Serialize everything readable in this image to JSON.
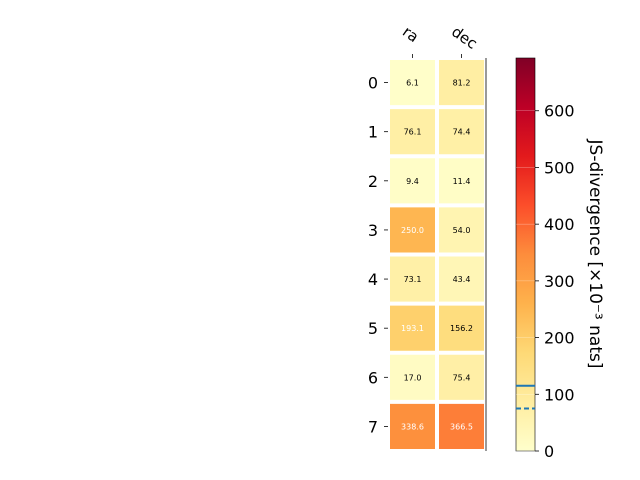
{
  "chart_data": {
    "type": "heatmap",
    "columns": [
      "ra",
      "dec"
    ],
    "rows": [
      "0",
      "1",
      "2",
      "3",
      "4",
      "5",
      "6",
      "7"
    ],
    "values": [
      [
        6.1,
        81.2
      ],
      [
        76.1,
        74.4
      ],
      [
        9.4,
        11.4
      ],
      [
        250.0,
        54.0
      ],
      [
        73.1,
        43.4
      ],
      [
        193.1,
        156.2
      ],
      [
        17.0,
        75.4
      ],
      [
        338.6,
        366.5
      ]
    ],
    "value_labels": [
      [
        "6.1",
        "81.2"
      ],
      [
        "76.1",
        "74.4"
      ],
      [
        "9.4",
        "11.4"
      ],
      [
        "250.0",
        "54.0"
      ],
      [
        "73.1",
        "43.4"
      ],
      [
        "193.1",
        "156.2"
      ],
      [
        "17.0",
        "75.4"
      ],
      [
        "338.6",
        "366.5"
      ]
    ],
    "colorbar": {
      "label": "JS-divergence [×10⁻³ nats]",
      "range": [
        0,
        693
      ],
      "ticks": [
        0,
        100,
        200,
        300,
        400,
        500,
        600
      ],
      "colormap": "YlOrRd",
      "threshold_solid": 115,
      "threshold_dashed": 75,
      "threshold_color": "#1f77b4"
    }
  }
}
